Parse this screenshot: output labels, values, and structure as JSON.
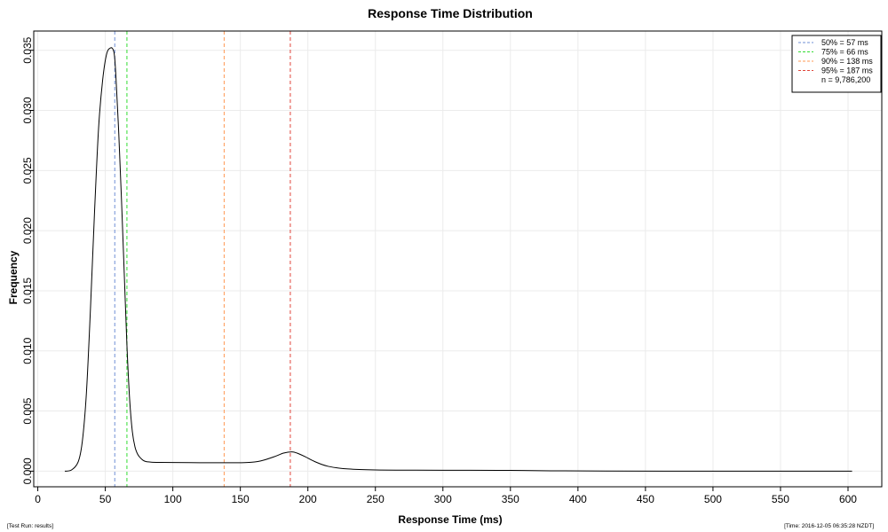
{
  "chart_data": {
    "type": "line",
    "title": "Response Time Distribution",
    "xlabel": "Response Time (ms)",
    "ylabel": "Frequency",
    "xlim": [
      -3,
      625
    ],
    "ylim": [
      -0.0013,
      0.0366
    ],
    "x_ticks": [
      0,
      50,
      100,
      150,
      200,
      250,
      300,
      350,
      400,
      450,
      500,
      550,
      600
    ],
    "x_tick_labels": [
      "0",
      "50",
      "100",
      "150",
      "200",
      "250",
      "300",
      "350",
      "400",
      "450",
      "500",
      "550",
      "600"
    ],
    "y_ticks": [
      0,
      0.005,
      0.01,
      0.015,
      0.02,
      0.025,
      0.03,
      0.035
    ],
    "y_tick_labels": [
      "0.000",
      "0.005",
      "0.010",
      "0.015",
      "0.020",
      "0.025",
      "0.030",
      "0.035"
    ],
    "grid": true,
    "legend_position": "top-right",
    "series": [
      {
        "color": "#000000",
        "x": [
          20,
          25,
          30,
          33,
          36,
          39,
          42,
          45,
          48,
          51,
          54,
          56,
          57,
          58,
          60,
          62,
          64,
          66,
          68,
          70,
          72,
          74,
          76,
          78,
          80,
          84,
          90,
          100,
          120,
          140,
          155,
          165,
          175,
          182,
          188,
          192,
          198,
          205,
          215,
          230,
          250,
          280,
          320,
          350,
          380,
          420,
          500,
          560,
          603
        ],
        "y": [
          0.0,
          0.0001,
          0.0008,
          0.0025,
          0.0065,
          0.0135,
          0.0215,
          0.0285,
          0.0325,
          0.0347,
          0.0352,
          0.035,
          0.0343,
          0.0325,
          0.028,
          0.0225,
          0.0165,
          0.0105,
          0.006,
          0.0033,
          0.002,
          0.0014,
          0.0011,
          0.0009,
          0.0008,
          0.00075,
          0.00073,
          0.00072,
          0.0007,
          0.0007,
          0.00072,
          0.00085,
          0.0012,
          0.0015,
          0.0016,
          0.0015,
          0.0012,
          0.0008,
          0.0004,
          0.00018,
          0.0001,
          8e-05,
          7e-05,
          6e-05,
          3e-05,
          1e-05,
          0.0,
          0.0,
          0.0
        ]
      }
    ],
    "percentile_lines": [
      {
        "x": 57,
        "color": "#6f8fd6",
        "label": "50% = 57 ms"
      },
      {
        "x": 66,
        "color": "#33dd33",
        "label": "75% = 66 ms"
      },
      {
        "x": 138,
        "color": "#ff9955",
        "label": "90% = 138 ms"
      },
      {
        "x": 187,
        "color": "#e0453a",
        "label": "95% = 187 ms"
      }
    ],
    "legend_note": "n = 9,786,200"
  },
  "footer": {
    "left": "[Test Run: results]",
    "right": "[Time: 2016-12-05 06:35:28 NZDT]"
  }
}
